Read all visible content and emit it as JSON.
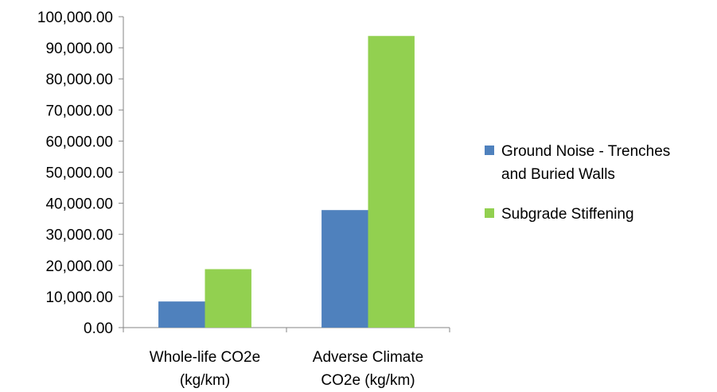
{
  "chart_data": {
    "type": "bar",
    "title": "",
    "xlabel": "",
    "ylabel": "",
    "ylim": [
      0,
      100000
    ],
    "y_ticks": [
      "0.00",
      "10,000.00",
      "20,000.00",
      "30,000.00",
      "40,000.00",
      "50,000.00",
      "60,000.00",
      "70,000.00",
      "80,000.00",
      "90,000.00",
      "100,000.00"
    ],
    "categories": [
      [
        "Whole-life CO2e",
        "(kg/km)"
      ],
      [
        "Adverse Climate",
        "CO2e (kg/km)"
      ]
    ],
    "series": [
      {
        "name": [
          "Ground Noise - Trenches",
          "and Buried Walls"
        ],
        "color": "#4F81BD",
        "values": [
          8400,
          37800
        ]
      },
      {
        "name": [
          "Subgrade Stiffening"
        ],
        "color": "#92D050",
        "values": [
          18800,
          93800
        ]
      }
    ],
    "grid": false,
    "legend_position": "right"
  }
}
